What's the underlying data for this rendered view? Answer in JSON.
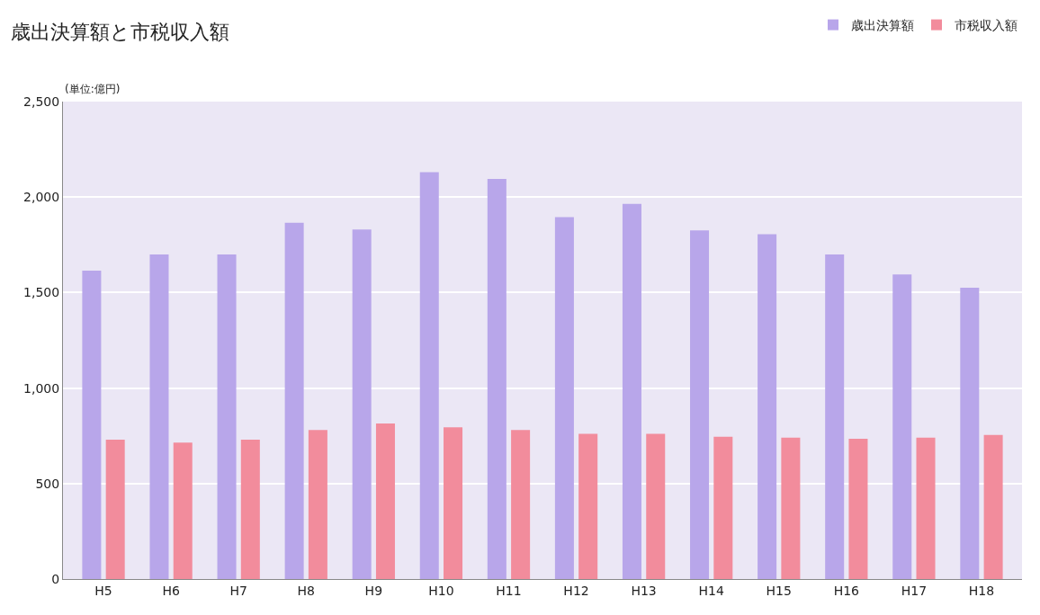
{
  "chart_data": {
    "type": "bar",
    "title": "歳出決算額と市税収入額",
    "annotations": [
      "(単位:億円)"
    ],
    "categories": [
      "H5",
      "H6",
      "H7",
      "H8",
      "H9",
      "H10",
      "H11",
      "H12",
      "H13",
      "H14",
      "H15",
      "H16",
      "H17",
      "H18"
    ],
    "series": [
      {
        "name": "歳出決算額",
        "color": "#b8a6ea",
        "values": [
          1615,
          1700,
          1700,
          1865,
          1830,
          2130,
          2095,
          1895,
          1965,
          1825,
          1805,
          1700,
          1595,
          1525
        ]
      },
      {
        "name": "市税収入額",
        "color": "#f28c9c",
        "values": [
          730,
          715,
          730,
          780,
          815,
          795,
          780,
          760,
          760,
          745,
          740,
          735,
          740,
          755
        ]
      }
    ],
    "ylim": [
      0,
      2500
    ],
    "yticks": [
      0,
      {
        "value": 500,
        "label": "500"
      },
      {
        "value": 1000,
        "label": "1,000"
      },
      {
        "value": 1500,
        "label": "1,500"
      },
      {
        "value": 2000,
        "label": "2,000"
      },
      {
        "value": 2500,
        "label": "2,500"
      }
    ],
    "grid": "y",
    "legend": "top right"
  }
}
